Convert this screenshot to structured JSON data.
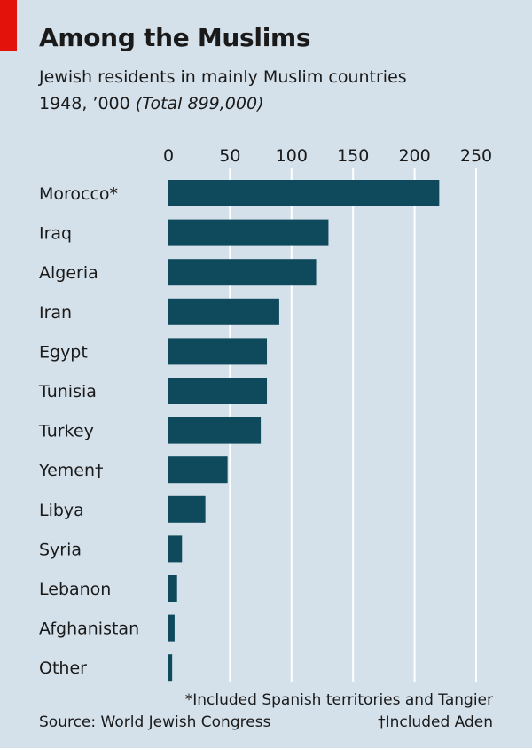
{
  "header": {
    "title": "Among the Muslims",
    "subtitle_line1": "Jewish residents in mainly Muslim countries",
    "subtitle_line2": "1948, ’000",
    "subtitle_total": "(Total 899,000)"
  },
  "chart_data": {
    "type": "bar",
    "orientation": "horizontal",
    "categories": [
      "Morocco*",
      "Iraq",
      "Algeria",
      "Iran",
      "Egypt",
      "Tunisia",
      "Turkey",
      "Yemen†",
      "Libya",
      "Syria",
      "Lebanon",
      "Afghanistan",
      "Other"
    ],
    "values": [
      220,
      130,
      120,
      90,
      80,
      80,
      75,
      48,
      30,
      11,
      7,
      5,
      3
    ],
    "xlim": [
      0,
      250
    ],
    "xticks": [
      0,
      50,
      100,
      150,
      200,
      250
    ],
    "tick_position": "top",
    "grid": true,
    "bar_color": "#0e4a5c"
  },
  "footnotes": {
    "note1": "*Included Spanish territories and Tangier",
    "source": "Source: World Jewish Congress",
    "note2": "†Included Aden"
  },
  "colors": {
    "background": "#d5e1ea",
    "accent": "#e3120b",
    "bar": "#0e4a5c",
    "grid": "#ffffff"
  }
}
